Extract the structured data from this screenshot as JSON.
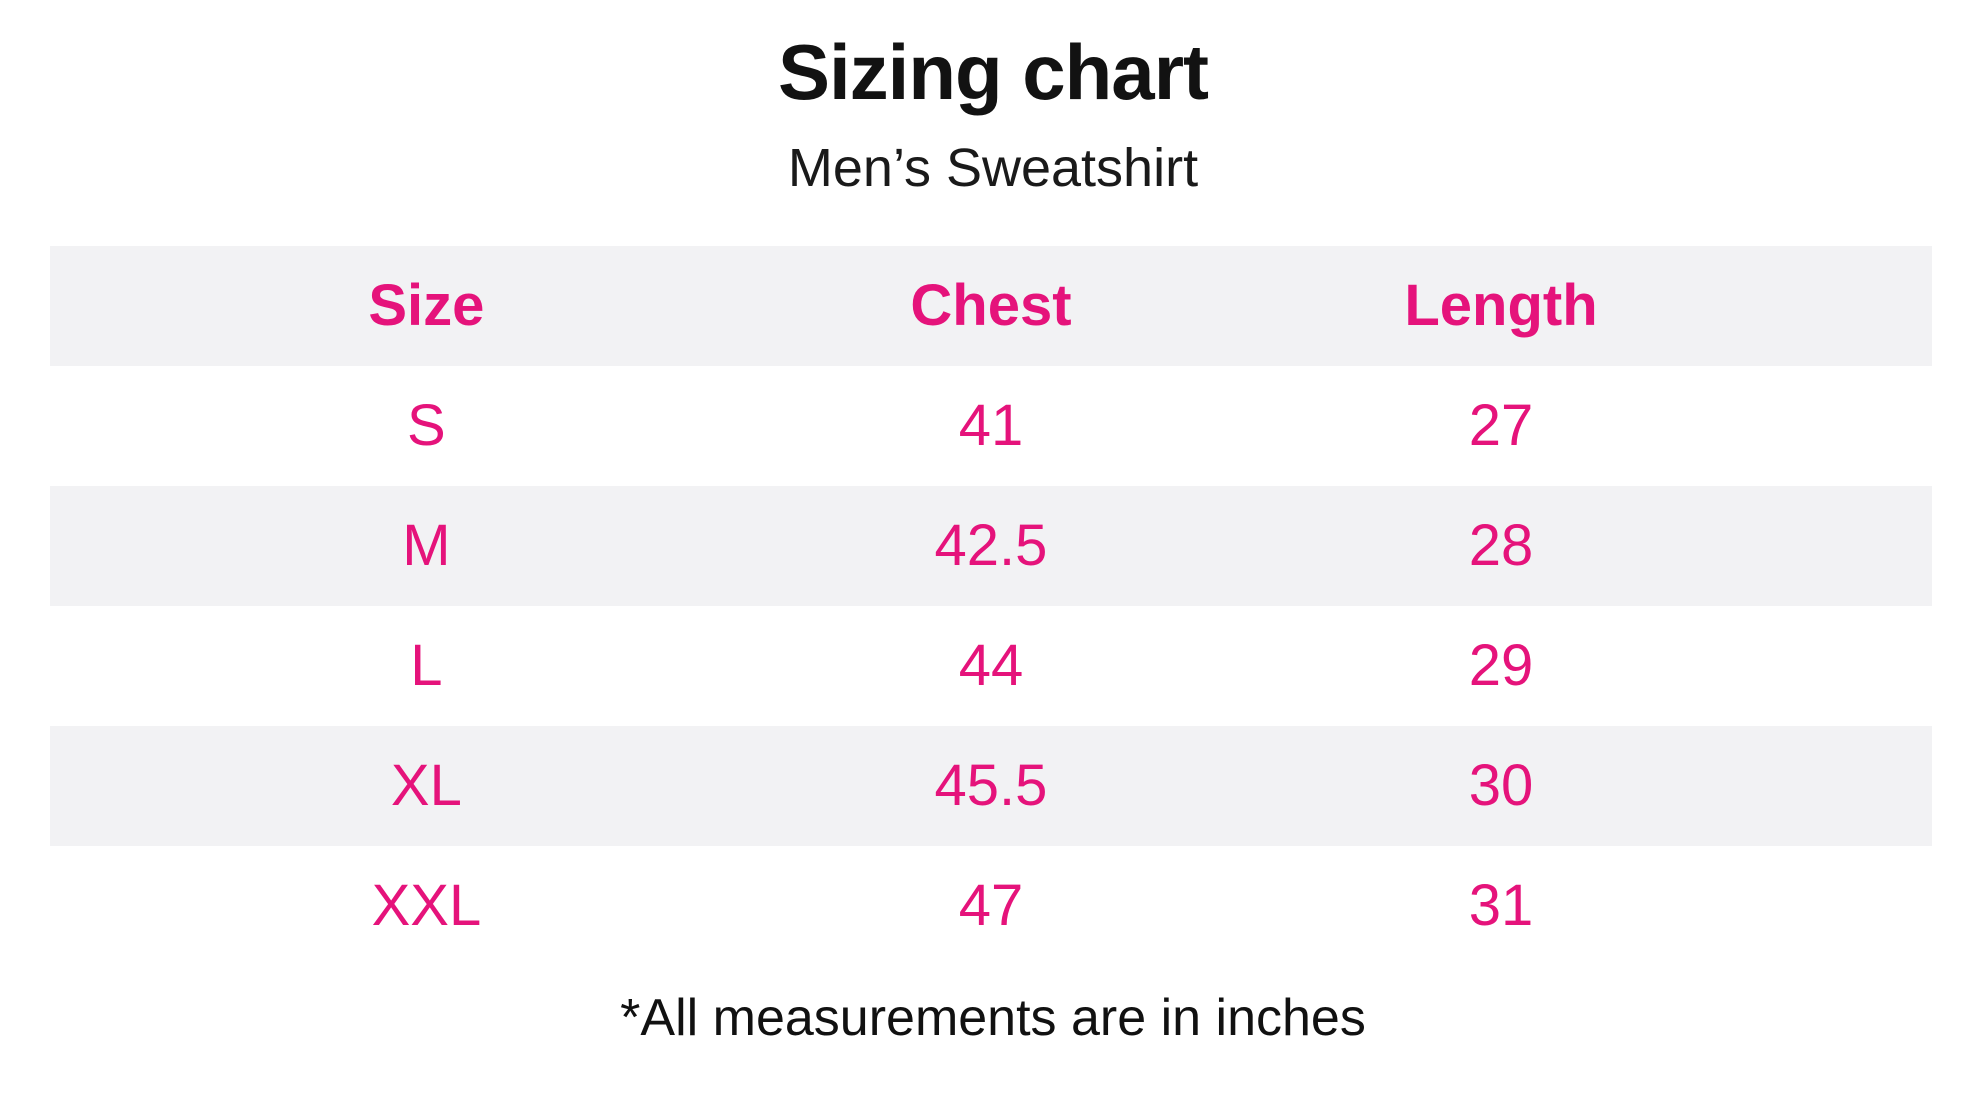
{
  "header": {
    "title": "Sizing chart",
    "subtitle": "Men’s Sweatshirt"
  },
  "footer": {
    "note": "*All measurements are in inches"
  },
  "colors": {
    "accent_pink": "#e5137b",
    "row_stripe": "#f2f2f4",
    "heading_text": "#121212"
  },
  "chart_data": {
    "type": "table",
    "title": "Sizing chart",
    "subtitle": "Men’s Sweatshirt",
    "columns": [
      "Size",
      "Chest",
      "Length"
    ],
    "rows": [
      [
        "S",
        "41",
        "27"
      ],
      [
        "M",
        "42.5",
        "28"
      ],
      [
        "L",
        "44",
        "29"
      ],
      [
        "XL",
        "45.5",
        "30"
      ],
      [
        "XXL",
        "47",
        "31"
      ]
    ],
    "units": "inches",
    "note": "*All measurements are in inches",
    "layout": {
      "stripe_pattern": "header-gray-then-alternating",
      "column_centers_pct": [
        20,
        50,
        77
      ]
    }
  }
}
